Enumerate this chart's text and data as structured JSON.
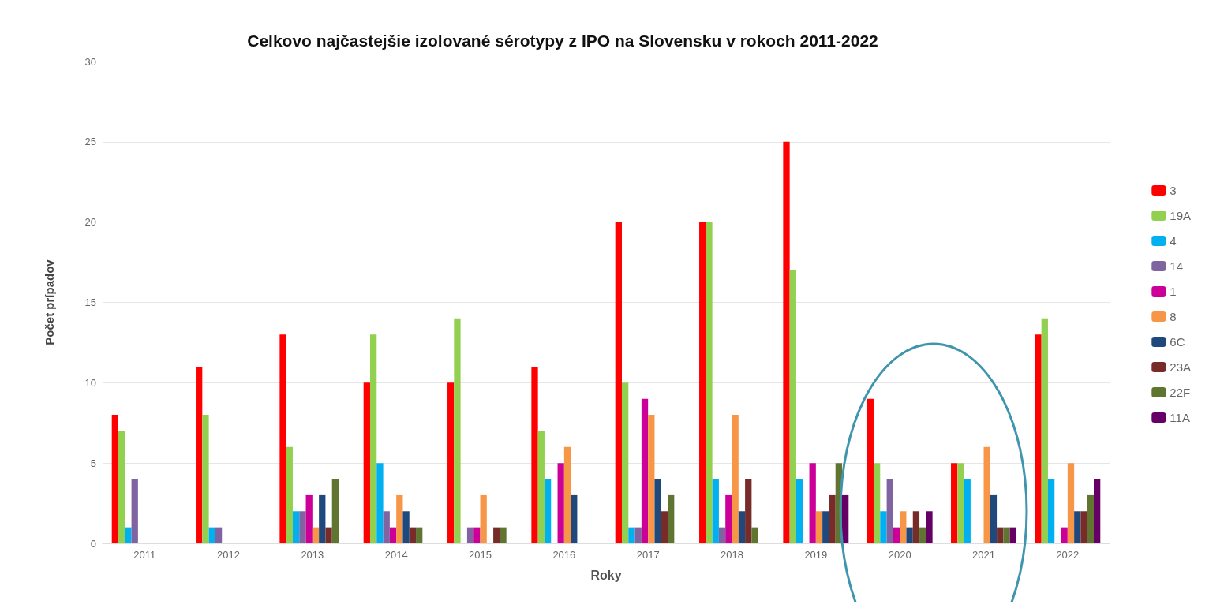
{
  "chart_data": {
    "type": "bar",
    "title": "Celkovo najčastejšie izolované sérotypy z IPO na Slovensku v rokoch 2011-2022",
    "xlabel": "Roky",
    "ylabel": "Počet prípadov",
    "categories": [
      "2011",
      "2012",
      "2013",
      "2014",
      "2015",
      "2016",
      "2017",
      "2018",
      "2019",
      "2020",
      "2021",
      "2022"
    ],
    "series": [
      {
        "name": "3",
        "color": "#ff0000",
        "values": [
          8,
          11,
          13,
          10,
          10,
          11,
          20,
          20,
          25,
          9,
          5,
          13
        ]
      },
      {
        "name": "19A",
        "color": "#92d050",
        "values": [
          7,
          8,
          6,
          13,
          14,
          7,
          10,
          20,
          17,
          5,
          5,
          14
        ]
      },
      {
        "name": "4",
        "color": "#00b0f0",
        "values": [
          1,
          1,
          2,
          5,
          0,
          4,
          1,
          4,
          4,
          2,
          4,
          4
        ]
      },
      {
        "name": "14",
        "color": "#8064a2",
        "values": [
          4,
          1,
          2,
          2,
          1,
          0,
          1,
          1,
          0,
          4,
          0,
          0
        ]
      },
      {
        "name": "1",
        "color": "#cc0099",
        "values": [
          0,
          0,
          3,
          1,
          1,
          5,
          9,
          3,
          5,
          1,
          0,
          1
        ]
      },
      {
        "name": "8",
        "color": "#f79646",
        "values": [
          0,
          0,
          1,
          3,
          3,
          6,
          8,
          8,
          2,
          2,
          6,
          5
        ]
      },
      {
        "name": "6C",
        "color": "#1f497d",
        "values": [
          0,
          0,
          3,
          2,
          0,
          3,
          4,
          2,
          2,
          1,
          3,
          2
        ]
      },
      {
        "name": "23A",
        "color": "#772c2a",
        "values": [
          0,
          0,
          1,
          1,
          1,
          0,
          2,
          4,
          3,
          2,
          1,
          2
        ]
      },
      {
        "name": "22F",
        "color": "#5f7530",
        "values": [
          0,
          0,
          4,
          1,
          1,
          0,
          3,
          1,
          5,
          1,
          1,
          3
        ]
      },
      {
        "name": "11A",
        "color": "#660066",
        "values": [
          0,
          0,
          0,
          0,
          0,
          0,
          0,
          0,
          3,
          2,
          1,
          4
        ]
      }
    ],
    "ylim": [
      0,
      30
    ],
    "yticks": [
      0,
      5,
      10,
      15,
      20,
      25,
      30
    ],
    "grid": "y",
    "legend": "right"
  }
}
